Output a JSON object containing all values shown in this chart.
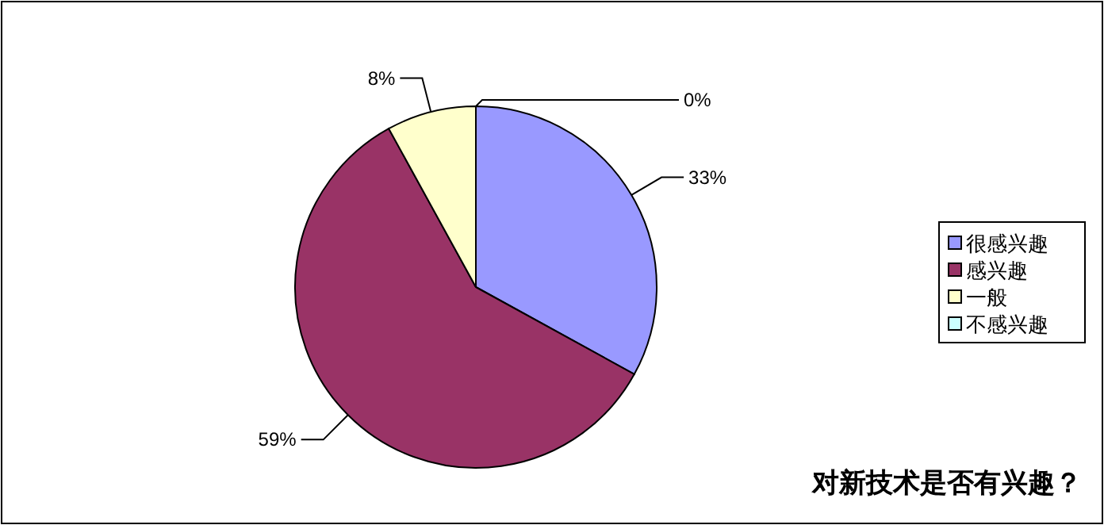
{
  "chart_data": {
    "type": "pie",
    "title": "对新技术是否有兴趣？",
    "categories": [
      "很感兴趣",
      "感兴趣",
      "一般",
      "不感兴趣"
    ],
    "values": [
      33,
      59,
      8,
      0
    ],
    "colors": [
      "#9999ff",
      "#993366",
      "#ffffcc",
      "#ccffff"
    ],
    "value_labels": [
      "33%",
      "59%",
      "8%",
      "0%"
    ],
    "legend": "right"
  }
}
